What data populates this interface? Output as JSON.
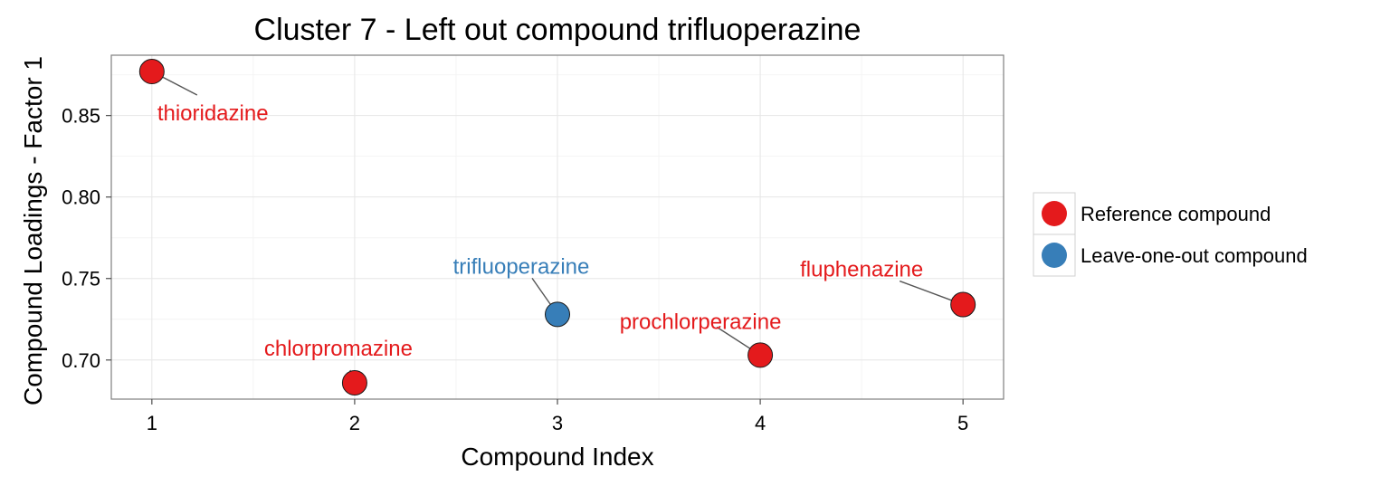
{
  "chart_data": {
    "type": "scatter",
    "title": "Cluster 7 - Left out compound trifluoperazine",
    "xlabel": "Compound Index",
    "ylabel": "Compound Loadings - Factor 1",
    "xlim": [
      0.8,
      5.2
    ],
    "ylim": [
      0.676,
      0.887
    ],
    "x_ticks": [
      1,
      2,
      3,
      4,
      5
    ],
    "y_ticks": [
      0.7,
      0.75,
      0.8,
      0.85
    ],
    "y_tick_labels": [
      "0.70",
      "0.75",
      "0.80",
      "0.85"
    ],
    "grid": true,
    "legend_position": "right",
    "legend": [
      {
        "label": "Reference compound",
        "color": "#e41a1c"
      },
      {
        "label": "Leave-one-out compound",
        "color": "#377eb8"
      }
    ],
    "points": [
      {
        "x": 1,
        "y": 0.877,
        "label": "thioridazine",
        "group": "Reference compound"
      },
      {
        "x": 2,
        "y": 0.686,
        "label": "chlorpromazine",
        "group": "Reference compound"
      },
      {
        "x": 3,
        "y": 0.728,
        "label": "trifluoperazine",
        "group": "Leave-one-out compound"
      },
      {
        "x": 4,
        "y": 0.703,
        "label": "prochlorperazine",
        "group": "Reference compound"
      },
      {
        "x": 5,
        "y": 0.734,
        "label": "fluphenazine",
        "group": "Reference compound"
      }
    ]
  }
}
